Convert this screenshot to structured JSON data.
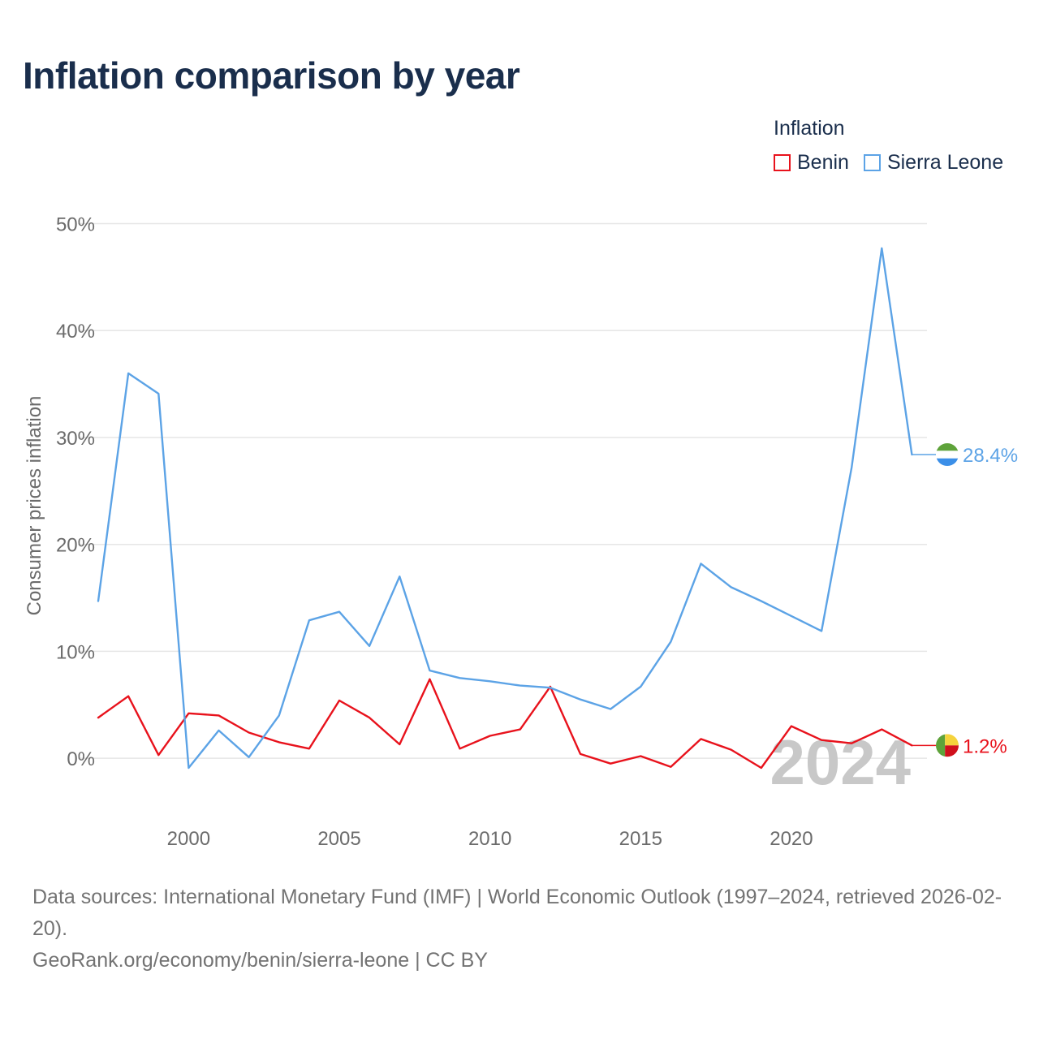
{
  "title": "Inflation comparison by year",
  "legend": {
    "title": "Inflation",
    "items": [
      {
        "name": "Benin",
        "color": "#e8121c"
      },
      {
        "name": "Sierra Leone",
        "color": "#5ca3e6"
      }
    ]
  },
  "footer": {
    "sources": "Data sources: International Monetary Fund (IMF) | World Economic Outlook (1997–2024, retrieved 2026-02-20).",
    "credit": "GeoRank.org/economy/benin/sierra-leone | CC BY"
  },
  "year_watermark": "2024",
  "chart_data": {
    "type": "line",
    "title": "Inflation comparison by year",
    "xlabel": "",
    "ylabel": "Consumer prices inflation",
    "x": [
      1997,
      1998,
      1999,
      2000,
      2001,
      2002,
      2003,
      2004,
      2005,
      2006,
      2007,
      2008,
      2009,
      2010,
      2011,
      2012,
      2013,
      2014,
      2015,
      2016,
      2017,
      2018,
      2019,
      2020,
      2021,
      2022,
      2023,
      2024
    ],
    "xlim": [
      1997,
      2024.5
    ],
    "ylim": [
      -5,
      53
    ],
    "yticks": [
      0,
      10,
      20,
      30,
      40,
      50
    ],
    "ytick_labels": [
      "0%",
      "10%",
      "20%",
      "30%",
      "40%",
      "50%"
    ],
    "xticks": [
      2000,
      2005,
      2010,
      2015,
      2020
    ],
    "xtick_labels": [
      "2000",
      "2005",
      "2010",
      "2015",
      "2020"
    ],
    "grid": true,
    "series": [
      {
        "name": "Benin",
        "color": "#e8121c",
        "values": [
          3.8,
          5.8,
          0.3,
          4.2,
          4.0,
          2.4,
          1.5,
          0.9,
          5.4,
          3.8,
          1.3,
          7.4,
          0.9,
          2.1,
          2.7,
          6.7,
          0.4,
          -0.5,
          0.2,
          -0.8,
          1.8,
          0.8,
          -0.9,
          3.0,
          1.7,
          1.4,
          2.7,
          1.2
        ],
        "end_label": "1.2%"
      },
      {
        "name": "Sierra Leone",
        "color": "#5ca3e6",
        "values": [
          14.7,
          36.0,
          34.1,
          -0.9,
          2.6,
          0.1,
          4.0,
          12.9,
          13.7,
          10.5,
          17.0,
          8.2,
          7.5,
          7.2,
          6.8,
          6.6,
          5.5,
          4.6,
          6.7,
          10.9,
          18.2,
          16.0,
          14.7,
          13.3,
          11.9,
          27.2,
          47.7,
          28.4
        ],
        "end_label": "28.4%"
      }
    ]
  }
}
